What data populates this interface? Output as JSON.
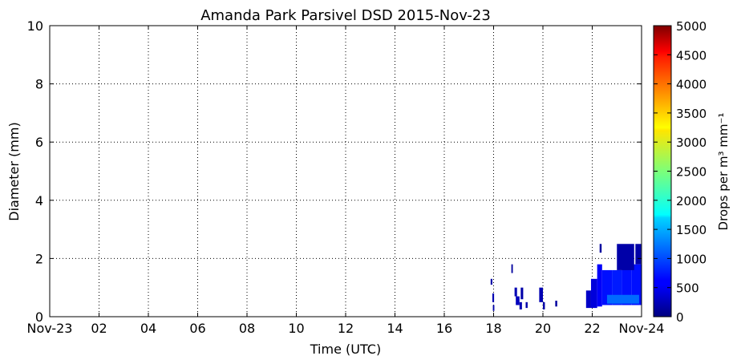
{
  "chart_data": {
    "type": "heatmap",
    "title": "Amanda Park Parsivel DSD 2015-Nov-23",
    "xlabel": "Time (UTC)",
    "ylabel": "Diameter (mm)",
    "xlim": [
      0,
      24
    ],
    "ylim": [
      0,
      10
    ],
    "x_ticks": [
      0,
      2,
      4,
      6,
      8,
      10,
      12,
      14,
      16,
      18,
      20,
      22,
      24
    ],
    "x_tick_labels": [
      "Nov-23",
      "02",
      "04",
      "06",
      "08",
      "10",
      "12",
      "14",
      "16",
      "18",
      "20",
      "22",
      "Nov-24"
    ],
    "y_ticks": [
      0,
      2,
      4,
      6,
      8,
      10
    ],
    "y_tick_labels": [
      "0",
      "2",
      "4",
      "6",
      "8",
      "10"
    ],
    "grid": true,
    "colorbar": {
      "label": "Drops per m³ mm⁻¹",
      "colormap": "jet",
      "range": [
        0,
        5000
      ],
      "ticks": [
        0,
        500,
        1000,
        1500,
        2000,
        2500,
        3000,
        3500,
        4000,
        4500,
        5000
      ],
      "tick_labels": [
        "0",
        "500",
        "1000",
        "1500",
        "2000",
        "2500",
        "3000",
        "3500",
        "4000",
        "4500",
        "5000"
      ]
    },
    "cells": [
      {
        "t0": 17.88,
        "t1": 17.95,
        "d0": 1.1,
        "d1": 1.3,
        "v": 200
      },
      {
        "t0": 17.95,
        "t1": 18.02,
        "d0": 0.5,
        "d1": 0.8,
        "v": 250
      },
      {
        "t0": 17.97,
        "t1": 18.03,
        "d0": 0.2,
        "d1": 0.4,
        "v": 200
      },
      {
        "t0": 18.72,
        "t1": 18.78,
        "d0": 1.5,
        "d1": 1.8,
        "v": 150
      },
      {
        "t0": 18.85,
        "t1": 18.95,
        "d0": 0.7,
        "d1": 1.0,
        "v": 250
      },
      {
        "t0": 18.9,
        "t1": 19.05,
        "d0": 0.4,
        "d1": 0.7,
        "v": 300
      },
      {
        "t0": 19.05,
        "t1": 19.15,
        "d0": 0.25,
        "d1": 0.5,
        "v": 250
      },
      {
        "t0": 19.1,
        "t1": 19.2,
        "d0": 0.6,
        "d1": 1.0,
        "v": 200
      },
      {
        "t0": 19.3,
        "t1": 19.38,
        "d0": 0.3,
        "d1": 0.5,
        "v": 200
      },
      {
        "t0": 19.85,
        "t1": 20.0,
        "d0": 0.5,
        "d1": 1.0,
        "v": 250
      },
      {
        "t0": 20.0,
        "t1": 20.08,
        "d0": 0.25,
        "d1": 0.5,
        "v": 200
      },
      {
        "t0": 20.5,
        "t1": 20.58,
        "d0": 0.35,
        "d1": 0.55,
        "v": 150
      },
      {
        "t0": 21.75,
        "t1": 21.95,
        "d0": 0.3,
        "d1": 0.9,
        "v": 350
      },
      {
        "t0": 21.95,
        "t1": 22.2,
        "d0": 0.3,
        "d1": 1.3,
        "v": 450
      },
      {
        "t0": 22.2,
        "t1": 22.4,
        "d0": 0.35,
        "d1": 1.8,
        "v": 600
      },
      {
        "t0": 22.4,
        "t1": 22.8,
        "d0": 0.4,
        "d1": 1.6,
        "v": 700
      },
      {
        "t0": 22.8,
        "t1": 23.2,
        "d0": 0.4,
        "d1": 1.6,
        "v": 750
      },
      {
        "t0": 23.2,
        "t1": 23.6,
        "d0": 0.4,
        "d1": 1.7,
        "v": 700
      },
      {
        "t0": 23.6,
        "t1": 24.0,
        "d0": 0.4,
        "d1": 1.8,
        "v": 700
      },
      {
        "t0": 22.6,
        "t1": 23.9,
        "d0": 0.45,
        "d1": 0.75,
        "v": 1150
      },
      {
        "t0": 22.3,
        "t1": 22.38,
        "d0": 2.2,
        "d1": 2.5,
        "v": 150
      },
      {
        "t0": 23.0,
        "t1": 23.7,
        "d0": 1.6,
        "d1": 2.5,
        "v": 200
      },
      {
        "t0": 23.75,
        "t1": 23.98,
        "d0": 1.8,
        "d1": 2.5,
        "v": 200
      }
    ]
  }
}
